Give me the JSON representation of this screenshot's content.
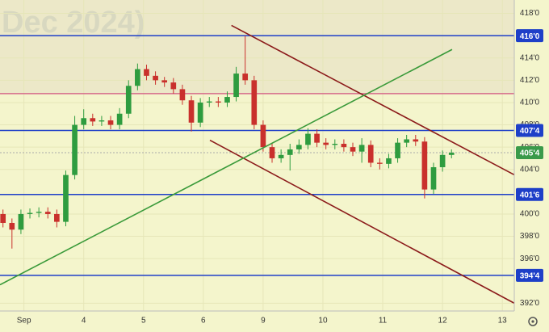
{
  "chart_data": {
    "type": "candlestick",
    "watermark": "Dec 2024)",
    "xlim": [
      -0.4,
      8.2
    ],
    "ylim": [
      391.3,
      419.2
    ],
    "xticks": [
      {
        "value": 0,
        "label": "Sep"
      },
      {
        "value": 1,
        "label": "4"
      },
      {
        "value": 2,
        "label": "5"
      },
      {
        "value": 3,
        "label": "6"
      },
      {
        "value": 4,
        "label": "9"
      },
      {
        "value": 5,
        "label": "10"
      },
      {
        "value": 6,
        "label": "11"
      },
      {
        "value": 7,
        "label": "12"
      },
      {
        "value": 8,
        "label": "13"
      }
    ],
    "yticks": [
      {
        "value": 418,
        "label": "418'0"
      },
      {
        "value": 414,
        "label": "414'0"
      },
      {
        "value": 412,
        "label": "412'0"
      },
      {
        "value": 410,
        "label": "410'0"
      },
      {
        "value": 408,
        "label": "408'0"
      },
      {
        "value": 406,
        "label": "406'0"
      },
      {
        "value": 404,
        "label": "404'0"
      },
      {
        "value": 400,
        "label": "400'0"
      },
      {
        "value": 398,
        "label": "398'0"
      },
      {
        "value": 396,
        "label": "396'0"
      },
      {
        "value": 392,
        "label": "392'0"
      }
    ],
    "up_color": "#2e9c3f",
    "down_color": "#c9302c",
    "candles": {
      "x": [
        -0.35,
        -0.2,
        -0.05,
        0.1,
        0.25,
        0.4,
        0.55,
        0.7,
        0.85,
        1.0,
        1.15,
        1.3,
        1.45,
        1.6,
        1.75,
        1.9,
        2.05,
        2.2,
        2.35,
        2.5,
        2.65,
        2.8,
        2.95,
        3.1,
        3.25,
        3.4,
        3.55,
        3.7,
        3.85,
        4.0,
        4.15,
        4.3,
        4.45,
        4.6,
        4.75,
        4.9,
        5.05,
        5.2,
        5.35,
        5.5,
        5.65,
        5.8,
        5.95,
        6.1,
        6.25,
        6.4,
        6.55,
        6.7,
        6.85,
        7.0,
        7.15
      ],
      "open": [
        400.0,
        399.2,
        398.6,
        400.0,
        400.1,
        400.2,
        400.0,
        399.3,
        403.5,
        408.0,
        408.6,
        408.3,
        408.4,
        408.0,
        409.0,
        411.5,
        413.0,
        412.4,
        412.0,
        411.8,
        411.2,
        410.2,
        408.2,
        410.0,
        410.1,
        410.0,
        410.5,
        412.6,
        412.0,
        408.0,
        406.0,
        405.0,
        405.3,
        405.8,
        406.2,
        407.2,
        406.4,
        406.2,
        406.3,
        406.0,
        405.6,
        406.2,
        404.6,
        404.5,
        405.0,
        406.4,
        406.7,
        406.5,
        402.2,
        404.2,
        405.3
      ],
      "high": [
        400.4,
        399.6,
        400.4,
        400.5,
        400.6,
        400.6,
        400.4,
        403.9,
        408.8,
        409.4,
        409.0,
        408.8,
        408.8,
        409.5,
        412.0,
        413.5,
        413.4,
        412.8,
        412.3,
        412.2,
        411.6,
        410.6,
        410.4,
        410.5,
        410.5,
        411.0,
        413.2,
        416.0,
        412.4,
        408.4,
        406.4,
        405.8,
        406.3,
        406.7,
        407.7,
        407.6,
        406.8,
        406.7,
        406.7,
        406.4,
        406.8,
        406.6,
        405.0,
        405.4,
        406.8,
        407.1,
        407.1,
        406.9,
        404.6,
        405.7,
        405.8
      ],
      "low": [
        398.8,
        396.9,
        398.2,
        399.6,
        399.7,
        399.6,
        398.8,
        398.9,
        403.1,
        407.6,
        407.9,
        407.9,
        407.6,
        407.6,
        408.6,
        411.1,
        412.0,
        411.6,
        411.4,
        410.8,
        409.8,
        407.4,
        407.8,
        409.6,
        409.6,
        409.6,
        410.1,
        411.6,
        407.6,
        405.6,
        404.6,
        404.6,
        403.9,
        405.4,
        405.8,
        406.0,
        405.8,
        405.8,
        405.6,
        405.2,
        404.6,
        404.2,
        404.0,
        404.1,
        404.6,
        406.0,
        406.1,
        401.4,
        401.8,
        403.8,
        405.0
      ],
      "close": [
        399.2,
        398.6,
        400.0,
        400.1,
        400.2,
        400.0,
        399.3,
        403.5,
        408.0,
        408.6,
        408.3,
        408.4,
        408.0,
        409.0,
        411.5,
        413.0,
        412.4,
        412.0,
        411.8,
        411.2,
        410.2,
        408.2,
        410.0,
        410.1,
        410.0,
        410.5,
        412.6,
        412.0,
        408.0,
        406.0,
        405.0,
        405.3,
        405.8,
        406.2,
        407.2,
        406.4,
        406.2,
        406.3,
        406.0,
        405.6,
        406.2,
        404.6,
        404.5,
        405.0,
        406.4,
        406.7,
        406.5,
        402.2,
        404.2,
        405.3,
        405.5
      ]
    },
    "levels": [
      {
        "value": 416,
        "label": "416'0",
        "color": "#1e3fc8"
      },
      {
        "value": 410.8,
        "color": "#d66a8a",
        "shade_above": "#ece8c8"
      },
      {
        "value": 407.5,
        "label": "407'4",
        "color": "#1e3fc8"
      },
      {
        "value": 405.5,
        "label": "405'4",
        "color": "#3a9a4a",
        "dashed": true
      },
      {
        "value": 401.75,
        "label": "401'6",
        "color": "#1e3fc8"
      },
      {
        "value": 394.5,
        "label": "394'4",
        "color": "#1e3fc8"
      }
    ],
    "trendlines": [
      {
        "color": "#8b1a1a",
        "points": [
          [
            3.47,
            416.92
          ],
          [
            8.2,
            403.52
          ]
        ]
      },
      {
        "color": "#8b1a1a",
        "points": [
          [
            3.11,
            406.62
          ],
          [
            8.2,
            392.0
          ]
        ]
      },
      {
        "color": "#3a9a3a",
        "points": [
          [
            -0.4,
            393.65
          ],
          [
            7.16,
            414.76
          ]
        ]
      }
    ]
  }
}
